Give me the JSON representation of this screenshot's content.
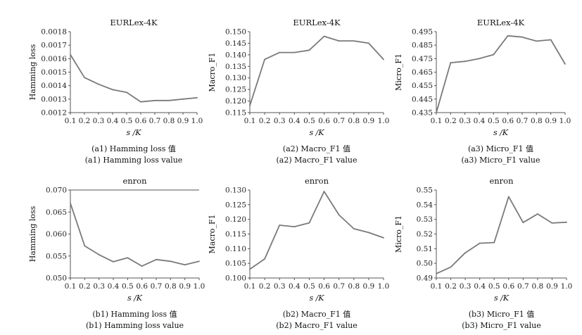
{
  "chart_data": [
    {
      "type": "line",
      "title": "EURLex-4K",
      "xlabel": "s /K",
      "ylabel": "Hamming loss",
      "x": [
        0.1,
        0.2,
        0.3,
        0.4,
        0.5,
        0.6,
        0.7,
        0.8,
        0.9,
        1.0
      ],
      "x_ticks": [
        "0.1",
        "0.2",
        "0.3",
        "0.4",
        "0.5",
        "0.6",
        "0.7",
        "0.8",
        "0.9",
        "1.0"
      ],
      "values": [
        0.00163,
        0.00146,
        0.00141,
        0.00137,
        0.00135,
        0.00128,
        0.00129,
        0.00129,
        0.0013,
        0.00131
      ],
      "ylim": [
        0.0012,
        0.0018
      ],
      "y_ticks": [
        0.0012,
        0.0013,
        0.0014,
        0.0015,
        0.0016,
        0.0017,
        0.0018
      ],
      "y_tick_labels": [
        "0.0012",
        "0.0013",
        "0.0014",
        "0.0015",
        "0.0016",
        "0.0017",
        "0.0018"
      ],
      "caption_cn": "(a1) Hamming loss 值",
      "caption_en": "(a1) Hamming loss value",
      "grid": false,
      "top_border": false
    },
    {
      "type": "line",
      "title": "EURLex-4K",
      "xlabel": "s /K",
      "ylabel": "Macro_F1",
      "x": [
        0.1,
        0.2,
        0.3,
        0.4,
        0.5,
        0.6,
        0.7,
        0.8,
        0.9,
        1.0
      ],
      "x_ticks": [
        "0.1",
        "0.2",
        "0.3",
        "0.4",
        "0.5",
        "0.6",
        "0.7",
        "0.8",
        "0.9",
        "1.0"
      ],
      "values": [
        0.118,
        0.138,
        0.141,
        0.141,
        0.142,
        0.148,
        0.146,
        0.146,
        0.145,
        0.138
      ],
      "ylim": [
        0.115,
        0.15
      ],
      "y_ticks": [
        0.115,
        0.12,
        0.125,
        0.13,
        0.135,
        0.14,
        0.145,
        0.15
      ],
      "y_tick_labels": [
        "0.115",
        "0.120",
        "0.125",
        "0.130",
        "0.135",
        "0.140",
        "0.145",
        "0.150"
      ],
      "caption_cn": "(a2) Macro_F1 值",
      "caption_en": "(a2) Macro_F1 value",
      "grid": false,
      "top_border": false
    },
    {
      "type": "line",
      "title": "EURLex-4K",
      "xlabel": "s /K",
      "ylabel": "Micro_F1",
      "x": [
        0.1,
        0.2,
        0.3,
        0.4,
        0.5,
        0.6,
        0.7,
        0.8,
        0.9,
        1.0
      ],
      "x_ticks": [
        "0.1",
        "0.2",
        "0.3",
        "0.4",
        "0.5",
        "0.6",
        "0.7",
        "0.8",
        "0.9",
        "1.0"
      ],
      "values": [
        0.435,
        0.472,
        0.473,
        0.475,
        0.478,
        0.492,
        0.491,
        0.488,
        0.489,
        0.471
      ],
      "ylim": [
        0.435,
        0.495
      ],
      "y_ticks": [
        0.435,
        0.445,
        0.455,
        0.465,
        0.475,
        0.485,
        0.495
      ],
      "y_tick_labels": [
        "0.435",
        "0.445",
        "0.455",
        "0.465",
        "0.475",
        "0.485",
        "0.495"
      ],
      "caption_cn": "(a3) Micro_F1 值",
      "caption_en": "(a3) Micro_F1 value",
      "grid": false,
      "top_border": false
    },
    {
      "type": "line",
      "title": "enron",
      "xlabel": "s /K",
      "ylabel": "Hamming loss",
      "x": [
        0.1,
        0.2,
        0.3,
        0.4,
        0.5,
        0.6,
        0.7,
        0.8,
        0.9,
        1.0
      ],
      "x_ticks": [
        "0.1",
        "0.2",
        "0.3",
        "0.4",
        "0.5",
        "0.6",
        "0.7",
        "0.8",
        "0.9",
        "1.0"
      ],
      "values": [
        0.067,
        0.0573,
        0.0553,
        0.0537,
        0.0546,
        0.0527,
        0.0542,
        0.0538,
        0.053,
        0.0538
      ],
      "ylim": [
        0.05,
        0.07
      ],
      "y_ticks": [
        0.05,
        0.055,
        0.06,
        0.065,
        0.07
      ],
      "y_tick_labels": [
        "0.050",
        "0.055",
        "0.060",
        "0.065",
        "0.070"
      ],
      "caption_cn": "(b1) Hamming loss 值",
      "caption_en": "(b1) Hamming loss value",
      "grid": false,
      "top_border": true
    },
    {
      "type": "line",
      "title": "enron",
      "xlabel": "s /K",
      "ylabel": "Macro_F1",
      "x": [
        0.1,
        0.2,
        0.3,
        0.4,
        0.5,
        0.6,
        0.7,
        0.8,
        0.9,
        1.0
      ],
      "x_ticks": [
        "0.1",
        "0.2",
        "0.3",
        "0.4",
        "0.5",
        "0.6",
        "0.7",
        "0.8",
        "0.9",
        "1.0"
      ],
      "values": [
        0.103,
        0.1065,
        0.118,
        0.1175,
        0.1188,
        0.1295,
        0.1215,
        0.1168,
        0.1155,
        0.1137
      ],
      "ylim": [
        0.1,
        0.13
      ],
      "y_ticks": [
        0.1,
        0.105,
        0.11,
        0.115,
        0.12,
        0.125,
        0.13
      ],
      "y_tick_labels": [
        "0.100",
        "0.105",
        "0.110",
        "0.115",
        "0.120",
        "0.125",
        "0.130"
      ],
      "caption_cn": "(b2) Macro_F1 值",
      "caption_en": "(b2) Macro_F1 value",
      "grid": false,
      "top_border": false
    },
    {
      "type": "line",
      "title": "enron",
      "xlabel": "s /K",
      "ylabel": "Micro_F1",
      "x": [
        0.1,
        0.2,
        0.3,
        0.4,
        0.5,
        0.6,
        0.7,
        0.8,
        0.9,
        1.0
      ],
      "x_ticks": [
        "0.1",
        "0.2",
        "0.3",
        "0.4",
        "0.5",
        "0.6",
        "0.7",
        "0.8",
        "0.9",
        "1.0"
      ],
      "values": [
        0.493,
        0.4975,
        0.5072,
        0.5137,
        0.5142,
        0.5455,
        0.5278,
        0.5337,
        0.5275,
        0.528
      ],
      "ylim": [
        0.49,
        0.55
      ],
      "y_ticks": [
        0.49,
        0.5,
        0.51,
        0.52,
        0.53,
        0.54,
        0.55
      ],
      "y_tick_labels": [
        "0.49",
        "0.50",
        "0.51",
        "0.52",
        "0.53",
        "0.54",
        "0.55"
      ],
      "caption_cn": "(b3) Micro_F1 值",
      "caption_en": "(b3) Micro_F1 value",
      "grid": false,
      "top_border": false
    }
  ],
  "style": {
    "line_color": "#7a7a7a",
    "axis_color": "#555555",
    "text_color": "#111111"
  }
}
